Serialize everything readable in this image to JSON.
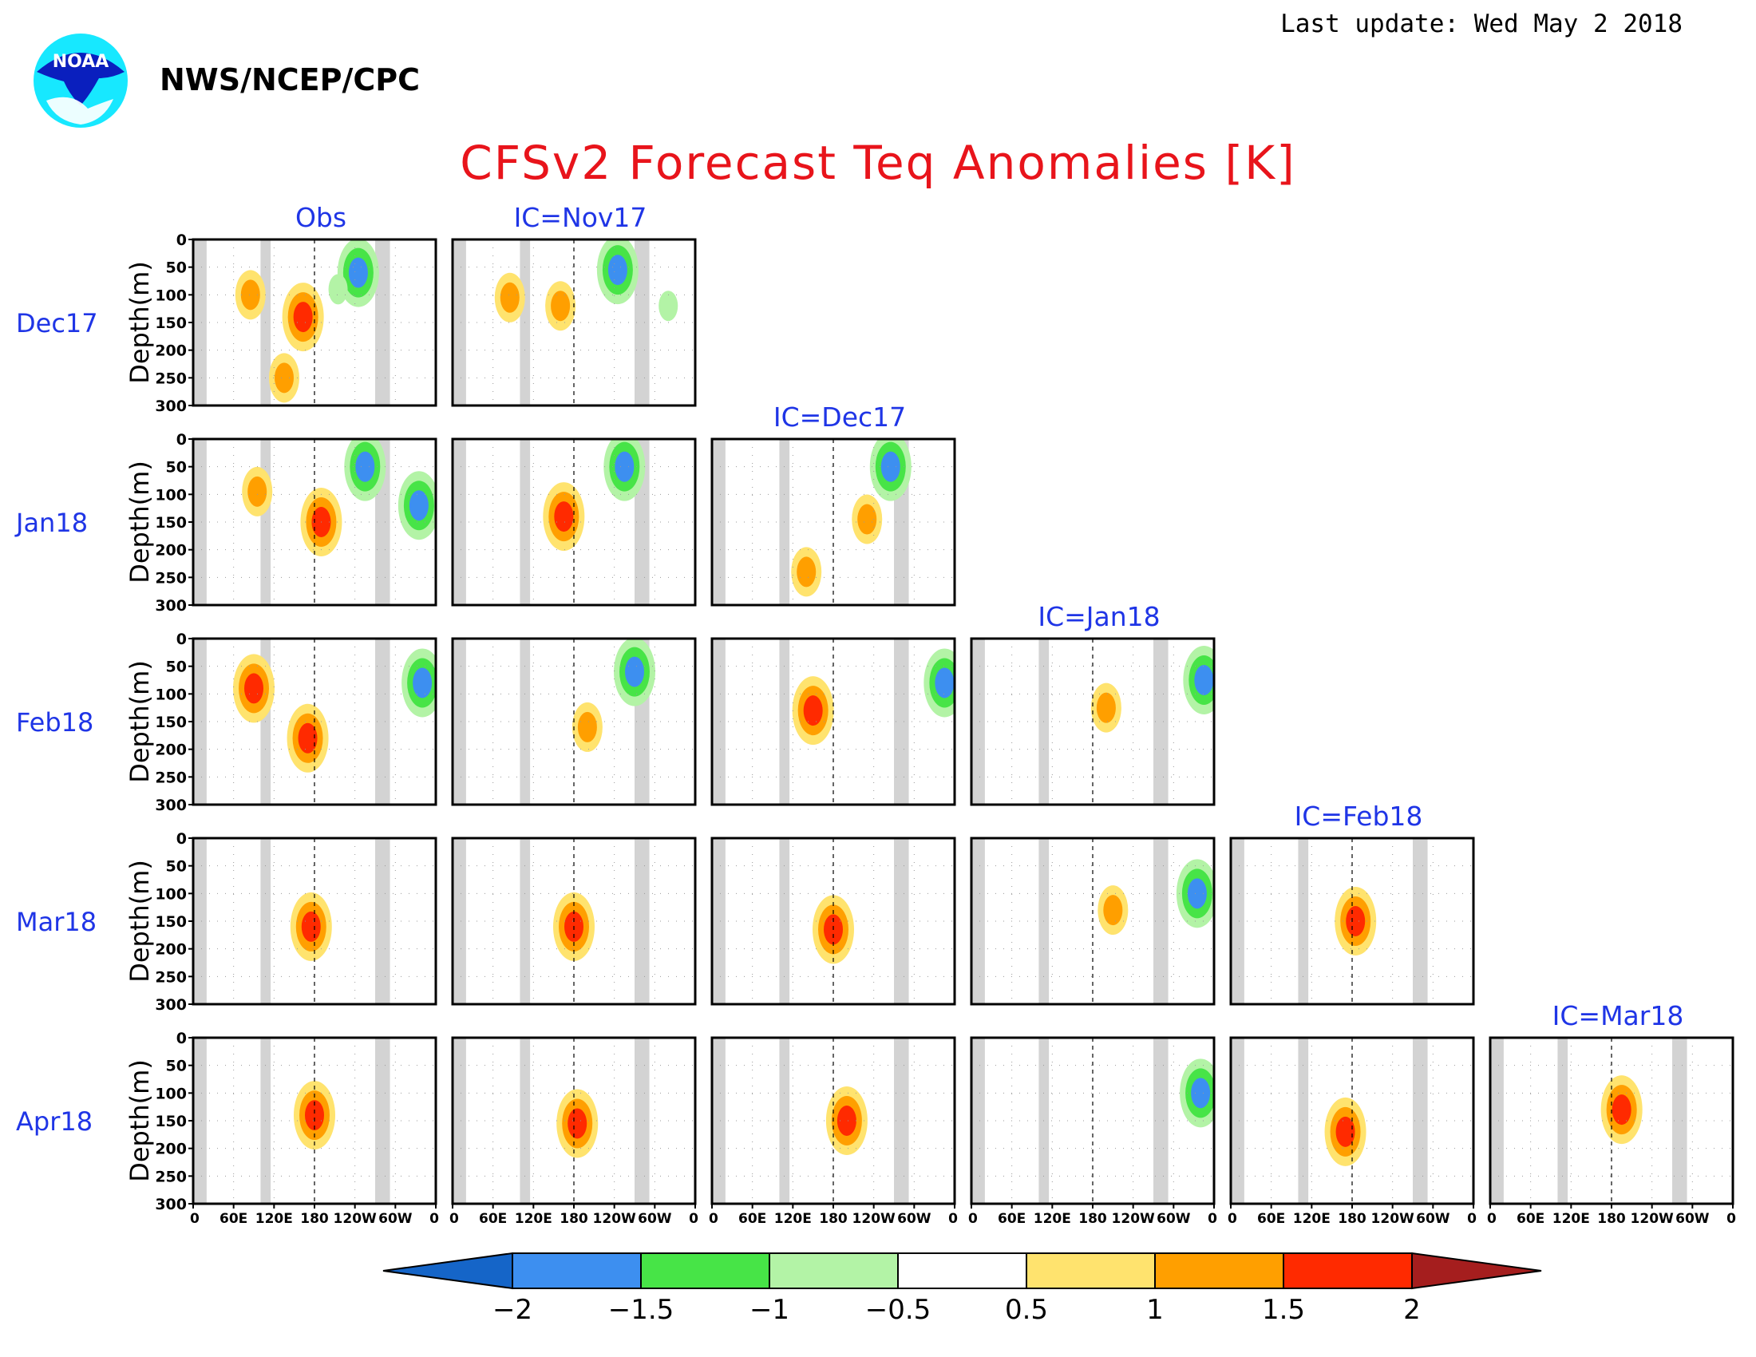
{
  "header": {
    "agency": "NWS/NCEP/CPC",
    "last_update": "Last update: Wed May 2 2018",
    "title": "CFSv2 Forecast Teq Anomalies [K]",
    "logo_text": "NOAA"
  },
  "colors": {
    "title": "#e8141b",
    "label_blue": "#1f35e6",
    "land_gray": "#d3d3d3",
    "levels": [
      "#1565c8",
      "#3d8ff0",
      "#47e447",
      "#b3f3a6",
      "#ffffff",
      "#ffe36e",
      "#ff9f00",
      "#ff2a00",
      "#a51e1e"
    ]
  },
  "chart_data": {
    "type": "heatmap",
    "variable": "Teq Anomalies [K]",
    "columns": [
      "Obs",
      "IC=Nov17",
      "IC=Dec17",
      "IC=Jan18",
      "IC=Feb18",
      "IC=Mar18"
    ],
    "rows": [
      "Dec17",
      "Jan18",
      "Feb18",
      "Mar18",
      "Apr18"
    ],
    "ylabel": "Depth(m)",
    "yticks": [
      "0",
      "50",
      "100",
      "150",
      "200",
      "250",
      "300"
    ],
    "ylim": [
      300,
      0
    ],
    "xticks": [
      "0",
      "60E",
      "120E",
      "180",
      "120W",
      "60W",
      "0"
    ],
    "xlim_deg_east": [
      0,
      360
    ],
    "land_bands_deg_east": [
      [
        0,
        20
      ],
      [
        100,
        115
      ],
      [
        270,
        292
      ]
    ],
    "dashed_meridian_deg_east": 180,
    "colorbar": {
      "levels": [
        -2,
        -1.5,
        -1,
        -0.5,
        0.5,
        1,
        1.5,
        2
      ],
      "tick_labels": [
        "−2",
        "−1.5",
        "−1",
        "−0.5",
        "0.5",
        "1",
        "1.5",
        "2"
      ],
      "extend": "both"
    },
    "panels_available": [
      {
        "row": "Dec17",
        "columns": [
          "Obs",
          "IC=Nov17"
        ]
      },
      {
        "row": "Jan18",
        "columns": [
          "Obs",
          "IC=Nov17",
          "IC=Dec17"
        ]
      },
      {
        "row": "Feb18",
        "columns": [
          "Obs",
          "IC=Nov17",
          "IC=Dec17",
          "IC=Jan18"
        ]
      },
      {
        "row": "Mar18",
        "columns": [
          "Obs",
          "IC=Nov17",
          "IC=Dec17",
          "IC=Jan18",
          "IC=Feb18"
        ]
      },
      {
        "row": "Apr18",
        "columns": [
          "Obs",
          "IC=Nov17",
          "IC=Dec17",
          "IC=Jan18",
          "IC=Feb18",
          "IC=Mar18"
        ]
      }
    ],
    "features": [
      {
        "row": "Dec17",
        "column": "Obs",
        "lon": 85,
        "depth": 100,
        "value": 1.7
      },
      {
        "row": "Dec17",
        "column": "Obs",
        "lon": 163,
        "depth": 140,
        "value": 1.8
      },
      {
        "row": "Dec17",
        "column": "Obs",
        "lon": 245,
        "depth": 60,
        "value": -2.0
      },
      {
        "row": "Dec17",
        "column": "Obs",
        "lon": 215,
        "depth": 90,
        "value": -1.2
      },
      {
        "row": "Dec17",
        "column": "Obs",
        "lon": 135,
        "depth": 250,
        "value": 1.6
      },
      {
        "row": "Dec17",
        "column": "IC=Nov17",
        "lon": 85,
        "depth": 105,
        "value": 1.5
      },
      {
        "row": "Dec17",
        "column": "IC=Nov17",
        "lon": 160,
        "depth": 120,
        "value": 1.6
      },
      {
        "row": "Dec17",
        "column": "IC=Nov17",
        "lon": 245,
        "depth": 55,
        "value": -2.0
      },
      {
        "row": "Dec17",
        "column": "IC=Nov17",
        "lon": 320,
        "depth": 120,
        "value": -1.2
      },
      {
        "row": "Jan18",
        "column": "Obs",
        "lon": 95,
        "depth": 95,
        "value": 1.7
      },
      {
        "row": "Jan18",
        "column": "Obs",
        "lon": 190,
        "depth": 150,
        "value": 1.9
      },
      {
        "row": "Jan18",
        "column": "Obs",
        "lon": 255,
        "depth": 50,
        "value": -2.0
      },
      {
        "row": "Jan18",
        "column": "Obs",
        "lon": 335,
        "depth": 120,
        "value": -1.8
      },
      {
        "row": "Jan18",
        "column": "IC=Nov17",
        "lon": 165,
        "depth": 140,
        "value": 1.8
      },
      {
        "row": "Jan18",
        "column": "IC=Nov17",
        "lon": 255,
        "depth": 50,
        "value": -2.0
      },
      {
        "row": "Jan18",
        "column": "IC=Dec17",
        "lon": 230,
        "depth": 145,
        "value": 1.7
      },
      {
        "row": "Jan18",
        "column": "IC=Dec17",
        "lon": 265,
        "depth": 50,
        "value": -2.0
      },
      {
        "row": "Jan18",
        "column": "IC=Dec17",
        "lon": 140,
        "depth": 240,
        "value": 1.6
      },
      {
        "row": "Feb18",
        "column": "Obs",
        "lon": 90,
        "depth": 90,
        "value": 2.0
      },
      {
        "row": "Feb18",
        "column": "Obs",
        "lon": 170,
        "depth": 180,
        "value": 2.2
      },
      {
        "row": "Feb18",
        "column": "Obs",
        "lon": 340,
        "depth": 80,
        "value": -2.0
      },
      {
        "row": "Feb18",
        "column": "IC=Nov17",
        "lon": 200,
        "depth": 160,
        "value": 1.6
      },
      {
        "row": "Feb18",
        "column": "IC=Nov17",
        "lon": 270,
        "depth": 60,
        "value": -2.0
      },
      {
        "row": "Feb18",
        "column": "IC=Dec17",
        "lon": 150,
        "depth": 130,
        "value": 1.8
      },
      {
        "row": "Feb18",
        "column": "IC=Dec17",
        "lon": 345,
        "depth": 80,
        "value": -2.0
      },
      {
        "row": "Feb18",
        "column": "IC=Jan18",
        "lon": 200,
        "depth": 125,
        "value": 1.6
      },
      {
        "row": "Feb18",
        "column": "IC=Jan18",
        "lon": 345,
        "depth": 75,
        "value": -2.0
      },
      {
        "row": "Mar18",
        "column": "Obs",
        "lon": 175,
        "depth": 160,
        "value": 2.2
      },
      {
        "row": "Mar18",
        "column": "IC=Nov17",
        "lon": 180,
        "depth": 160,
        "value": 1.9
      },
      {
        "row": "Mar18",
        "column": "IC=Dec17",
        "lon": 180,
        "depth": 165,
        "value": 2.1
      },
      {
        "row": "Mar18",
        "column": "IC=Jan18",
        "lon": 210,
        "depth": 130,
        "value": 1.7
      },
      {
        "row": "Mar18",
        "column": "IC=Jan18",
        "lon": 335,
        "depth": 100,
        "value": -2.0
      },
      {
        "row": "Mar18",
        "column": "IC=Feb18",
        "lon": 185,
        "depth": 150,
        "value": 1.9
      },
      {
        "row": "Apr18",
        "column": "Obs",
        "lon": 180,
        "depth": 140,
        "value": 2.1
      },
      {
        "row": "Apr18",
        "column": "IC=Nov17",
        "lon": 185,
        "depth": 155,
        "value": 2.2
      },
      {
        "row": "Apr18",
        "column": "IC=Dec17",
        "lon": 200,
        "depth": 150,
        "value": 2.2
      },
      {
        "row": "Apr18",
        "column": "IC=Jan18",
        "lon": 340,
        "depth": 100,
        "value": -2.0
      },
      {
        "row": "Apr18",
        "column": "IC=Feb18",
        "lon": 170,
        "depth": 170,
        "value": 2.0
      },
      {
        "row": "Apr18",
        "column": "IC=Mar18",
        "lon": 195,
        "depth": 130,
        "value": 1.9
      }
    ]
  }
}
